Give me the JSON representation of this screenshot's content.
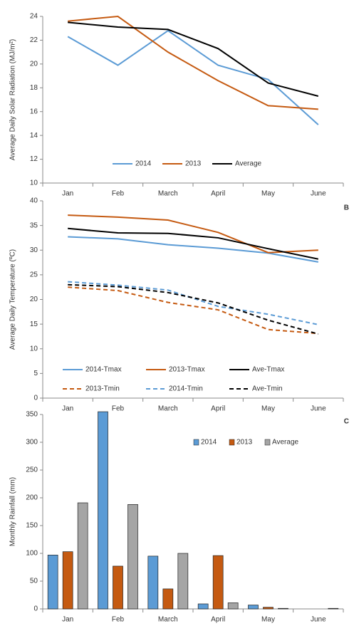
{
  "chart_data": [
    {
      "type": "line",
      "y_label": "Average Daily Solar Radiation (MJ/m²)",
      "categories": [
        "Jan",
        "Feb",
        "March",
        "April",
        "May",
        "June"
      ],
      "ylim": [
        10,
        24
      ],
      "yticks": [
        10,
        12,
        14,
        16,
        18,
        20,
        22,
        24
      ],
      "legend": "lower center",
      "series": [
        {
          "name": "2014",
          "color": "#5b9bd5",
          "values": [
            22.3,
            19.9,
            22.8,
            19.9,
            18.7,
            14.9
          ]
        },
        {
          "name": "2013",
          "color": "#c55a11",
          "values": [
            23.6,
            24.0,
            21.0,
            18.6,
            16.5,
            16.2
          ]
        },
        {
          "name": "Average",
          "color": "#000000",
          "values": [
            23.5,
            23.1,
            22.9,
            21.3,
            18.4,
            17.3
          ]
        }
      ]
    },
    {
      "type": "line",
      "panel_label": "B",
      "y_label": "Average  Daily Temperature (ºC)",
      "categories": [
        "Jan",
        "Feb",
        "March",
        "April",
        "May",
        "June"
      ],
      "ylim": [
        0,
        40
      ],
      "yticks": [
        0,
        5,
        10,
        15,
        20,
        25,
        30,
        35,
        40
      ],
      "legend": "lower left",
      "series": [
        {
          "name": "2014-Tmax",
          "color": "#5b9bd5",
          "values": [
            32.7,
            32.3,
            31.1,
            30.4,
            29.4,
            27.6
          ]
        },
        {
          "name": "2013-Tmax",
          "color": "#c55a11",
          "values": [
            37.1,
            36.7,
            36.1,
            33.6,
            29.5,
            30.0
          ]
        },
        {
          "name": "Ave-Tmax",
          "color": "#000000",
          "values": [
            34.4,
            33.5,
            33.4,
            32.5,
            30.3,
            28.2
          ]
        },
        {
          "name": "2013-Tmin",
          "color": "#c55a11",
          "dashed": true,
          "values": [
            22.5,
            21.8,
            19.4,
            17.9,
            13.9,
            13.1
          ]
        },
        {
          "name": "2014-Tmin",
          "color": "#5b9bd5",
          "dashed": true,
          "values": [
            23.6,
            22.9,
            21.9,
            18.6,
            17.0,
            14.9
          ]
        },
        {
          "name": "Ave-Tmin",
          "color": "#000000",
          "dashed": true,
          "values": [
            23.0,
            22.6,
            21.4,
            19.3,
            15.8,
            13.0
          ]
        }
      ]
    },
    {
      "type": "bar",
      "panel_label": "C",
      "y_label": "Monthly Rainfall (mm)",
      "categories": [
        "Jan",
        "Feb",
        "March",
        "April",
        "May",
        "June"
      ],
      "ylim": [
        0,
        350
      ],
      "yticks": [
        0,
        50,
        100,
        150,
        200,
        250,
        300,
        350
      ],
      "legend": "upper right",
      "series": [
        {
          "name": "2014",
          "color": "#5b9bd5",
          "values": [
            97,
            355,
            95,
            9,
            7,
            0
          ]
        },
        {
          "name": "2013",
          "color": "#c55a11",
          "values": [
            103,
            77,
            36,
            96,
            3,
            0
          ]
        },
        {
          "name": "Average",
          "color": "#a5a5a5",
          "values": [
            191,
            188,
            100,
            11,
            1,
            1
          ]
        }
      ]
    }
  ]
}
